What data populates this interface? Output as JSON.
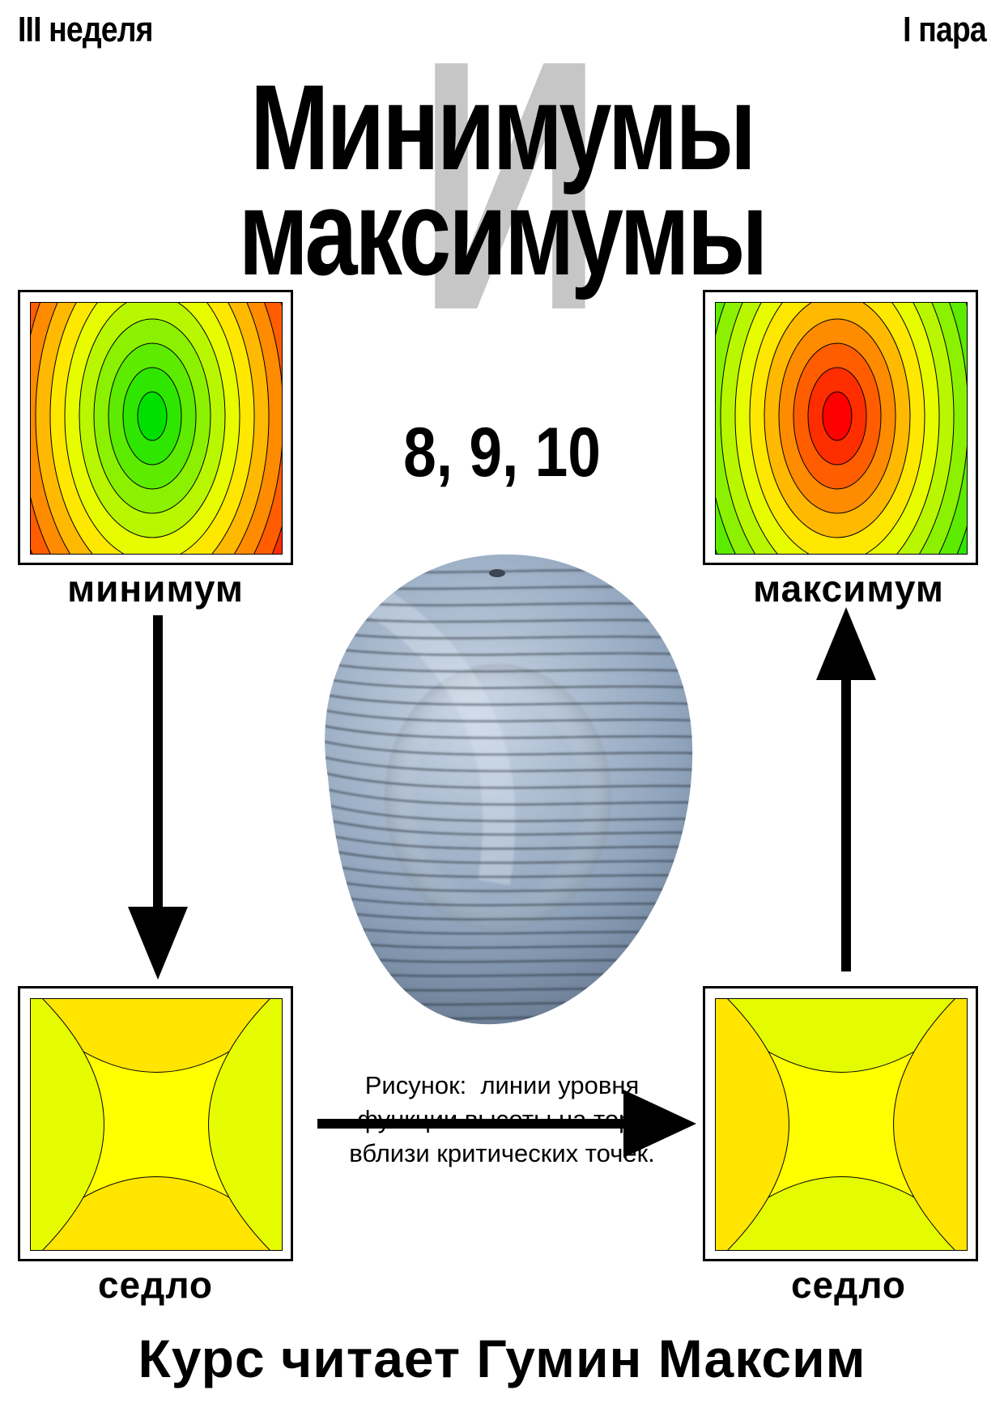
{
  "header": {
    "week": "III неделя",
    "pair": "I пара"
  },
  "title": {
    "line1": "Минимумы",
    "connector": "и",
    "line2": "максимумы"
  },
  "lectures": "8, 9, 10",
  "panels": {
    "minimum": {
      "label": "минимум"
    },
    "maximum": {
      "label": "максимум"
    },
    "saddle_left": {
      "label": "седло"
    },
    "saddle_right": {
      "label": "седло"
    }
  },
  "caption": {
    "line1": "Рисунок:  линии уровня",
    "line2": "функции высоты на торе",
    "line3": "вблизи критических точек."
  },
  "footer": "Курс читает Гумин Максим",
  "colors": {
    "low": "#00e000",
    "mid": "#ffff00",
    "high": "#ff0000",
    "torus": "#8fa3bb"
  }
}
